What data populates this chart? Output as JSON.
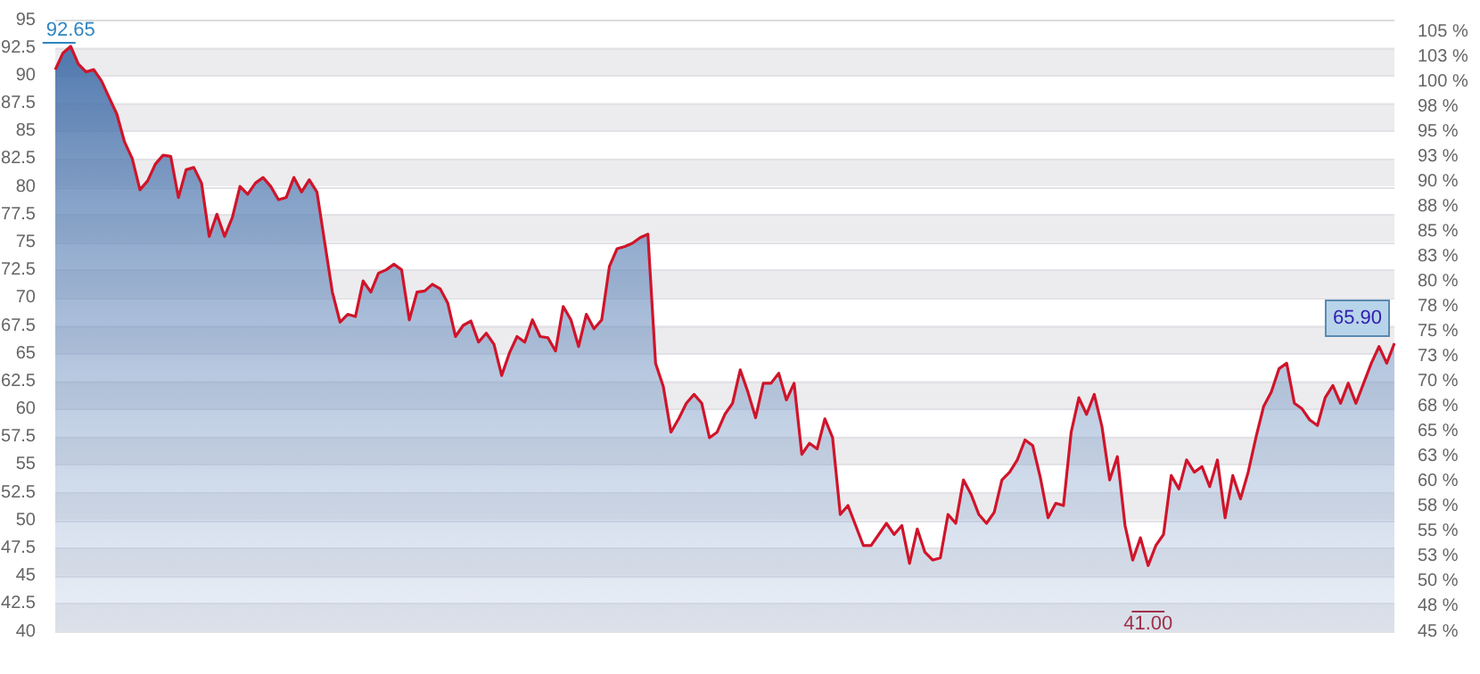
{
  "chart_data": {
    "type": "area",
    "categories": [
      null,
      null,
      null,
      null,
      null,
      null,
      null,
      null,
      null,
      null,
      null,
      null,
      null,
      null,
      null,
      null,
      null,
      null,
      null,
      null,
      null,
      null,
      null,
      null,
      null,
      null,
      null,
      null,
      null,
      null,
      null,
      null,
      null,
      null,
      null,
      null,
      null,
      null,
      null,
      null,
      null,
      null,
      null,
      null,
      null,
      null,
      null,
      null,
      null,
      null,
      null,
      null,
      null,
      null,
      null,
      null,
      null,
      null,
      null,
      null,
      null,
      null,
      null,
      null,
      null,
      null,
      null,
      null,
      null,
      null,
      null,
      null,
      null,
      null,
      null,
      null,
      null,
      null,
      null,
      null,
      null,
      null,
      null,
      null,
      null,
      null,
      null,
      null,
      null,
      null,
      null,
      null,
      null,
      null,
      null,
      null,
      null,
      null,
      null,
      null,
      null,
      null,
      null,
      null,
      null,
      null,
      null,
      null,
      null,
      null,
      null,
      null,
      null,
      null,
      null,
      null,
      null,
      null,
      null,
      null,
      null,
      null,
      null,
      null,
      null,
      null,
      null,
      null,
      null,
      null,
      null,
      null,
      null,
      null,
      null,
      null,
      null,
      null,
      null,
      null,
      null,
      null,
      null,
      null,
      null,
      null,
      null,
      null,
      null,
      null,
      null,
      null,
      null,
      null,
      null,
      null,
      null,
      null,
      null,
      null,
      null,
      null,
      null,
      null,
      null,
      null,
      null,
      null,
      null,
      null,
      null,
      null,
      null,
      null,
      null
    ],
    "series": [
      {
        "color": "#d0142a",
        "values": [
          90.5,
          92,
          92.6,
          91,
          90.3,
          90.5,
          89.5,
          88,
          86.5,
          84,
          82.5,
          79.7,
          80.5,
          82,
          82.8,
          82.7,
          79,
          81.5,
          81.7,
          80.3,
          75.5,
          77.5,
          75.5,
          77.2,
          80,
          79.3,
          80.3,
          80.8,
          80,
          78.8,
          79,
          80.8,
          79.5,
          80.6,
          79.5,
          75,
          70.5,
          67.8,
          68.5,
          68.3,
          71.5,
          70.5,
          72.2,
          72.5,
          73,
          72.5,
          68,
          70.5,
          70.6,
          71.2,
          70.8,
          69.5,
          66.5,
          67.5,
          67.9,
          66,
          66.8,
          65.8,
          63,
          65,
          66.5,
          66,
          68,
          66.5,
          66.4,
          65.2,
          69.2,
          68,
          65.6,
          68.5,
          67.2,
          68,
          72.8,
          74.4,
          74.6,
          74.9,
          75.4,
          75.7,
          64.1,
          62,
          57.9,
          59.1,
          60.5,
          61.3,
          60.5,
          57.4,
          57.9,
          59.5,
          60.5,
          63.5,
          61.5,
          59.2,
          62.3,
          62.3,
          63.2,
          60.8,
          62.3,
          55.9,
          56.9,
          56.4,
          59.1,
          57.4,
          50.5,
          51.3,
          49.5,
          47.7,
          47.7,
          48.7,
          49.7,
          48.7,
          49.5,
          46.1,
          49.2,
          47.1,
          46.4,
          46.6,
          50.5,
          49.7,
          53.6,
          52.3,
          50.5,
          49.7,
          50.7,
          53.6,
          54.3,
          55.4,
          57.2,
          56.7,
          53.8,
          50.2,
          51.5,
          51.3,
          57.9,
          61,
          59.5,
          61.3,
          58.4,
          53.6,
          55.7,
          49.5,
          46.4,
          48.4,
          45.9,
          47.7,
          48.7,
          54,
          52.8,
          55.4,
          54.3,
          54.8,
          53,
          55.4,
          50.2,
          54,
          51.9,
          54.3,
          57.4,
          60.2,
          61.5,
          63.6,
          64.1,
          60.5,
          60,
          59,
          58.5,
          61,
          62.1,
          60.5,
          62.3,
          60.5,
          62.3,
          64.1,
          65.6,
          64.1,
          65.9
        ]
      }
    ],
    "ylim": [
      40,
      95
    ],
    "yticks": [
      40,
      42.5,
      45,
      47.5,
      50,
      52.5,
      55,
      57.5,
      60,
      62.5,
      65,
      67.5,
      70,
      72.5,
      75,
      77.5,
      80,
      82.5,
      85,
      87.5,
      90,
      92.5,
      95
    ],
    "y2lim": [
      45,
      106.2
    ],
    "y2ticks": [
      {
        "value": 45,
        "label": "45 %"
      },
      {
        "value": 47.5,
        "label": "48 %"
      },
      {
        "value": 50,
        "label": "50 %"
      },
      {
        "value": 52.5,
        "label": "53 %"
      },
      {
        "value": 55,
        "label": "55 %"
      },
      {
        "value": 57.5,
        "label": "58 %"
      },
      {
        "value": 60,
        "label": "60 %"
      },
      {
        "value": 62.5,
        "label": "63 %"
      },
      {
        "value": 65,
        "label": "65 %"
      },
      {
        "value": 67.5,
        "label": "68 %"
      },
      {
        "value": 70,
        "label": "70 %"
      },
      {
        "value": 72.5,
        "label": "73 %"
      },
      {
        "value": 75,
        "label": "75 %"
      },
      {
        "value": 77.5,
        "label": "78 %"
      },
      {
        "value": 80,
        "label": "80 %"
      },
      {
        "value": 82.5,
        "label": "83 %"
      },
      {
        "value": 85,
        "label": "85 %"
      },
      {
        "value": 87.5,
        "label": "88 %"
      },
      {
        "value": 90,
        "label": "90 %"
      },
      {
        "value": 92.5,
        "label": "93 %"
      },
      {
        "value": 95,
        "label": "95 %"
      },
      {
        "value": 97.5,
        "label": "98 %"
      },
      {
        "value": 100,
        "label": "100 %"
      },
      {
        "value": 102.5,
        "label": "103 %"
      },
      {
        "value": 105,
        "label": "105 %"
      }
    ],
    "grid": true,
    "legend": false,
    "marker": "none",
    "line_style": "solid",
    "annotations": [
      "92.65",
      "41.00",
      "65.90"
    ]
  }
}
